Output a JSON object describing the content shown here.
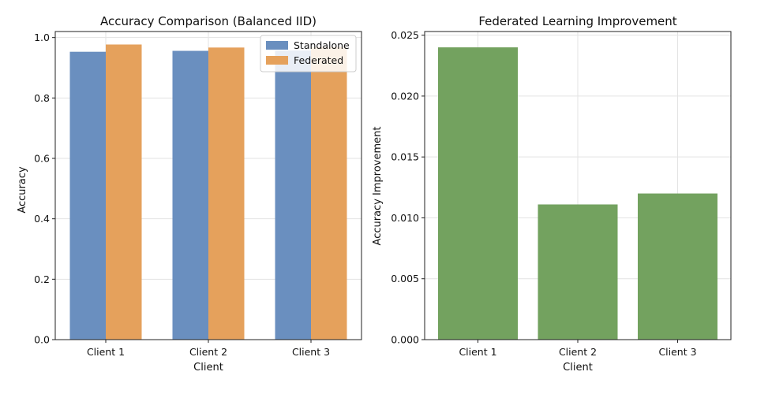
{
  "chart_data": [
    {
      "type": "bar",
      "title": "Accuracy Comparison (Balanced IID)",
      "xlabel": "Client",
      "ylabel": "Accuracy",
      "categories": [
        "Client 1",
        "Client 2",
        "Client 3"
      ],
      "series": [
        {
          "name": "Standalone",
          "color": "#6a8fbf",
          "values": [
            0.953,
            0.956,
            0.957
          ]
        },
        {
          "name": "Federated",
          "color": "#e5a15c",
          "values": [
            0.977,
            0.967,
            0.969
          ]
        }
      ],
      "ylim": [
        0,
        1.02
      ],
      "yticks": [
        0.0,
        0.2,
        0.4,
        0.6,
        0.8,
        1.0
      ],
      "ytick_labels": [
        "0.0",
        "0.2",
        "0.4",
        "0.6",
        "0.8",
        "1.0"
      ],
      "grid": true,
      "legend": {
        "location": "upper right",
        "entries": [
          "Standalone",
          "Federated"
        ]
      }
    },
    {
      "type": "bar",
      "title": "Federated Learning Improvement",
      "xlabel": "Client",
      "ylabel": "Accuracy Improvement",
      "categories": [
        "Client 1",
        "Client 2",
        "Client 3"
      ],
      "series": [
        {
          "name": "Improvement",
          "color": "#73a25f",
          "values": [
            0.024,
            0.0111,
            0.012
          ]
        }
      ],
      "ylim": [
        0,
        0.0253
      ],
      "yticks": [
        0.0,
        0.005,
        0.01,
        0.015,
        0.02,
        0.025
      ],
      "ytick_labels": [
        "0.000",
        "0.005",
        "0.010",
        "0.015",
        "0.020",
        "0.025"
      ],
      "grid": true
    }
  ]
}
